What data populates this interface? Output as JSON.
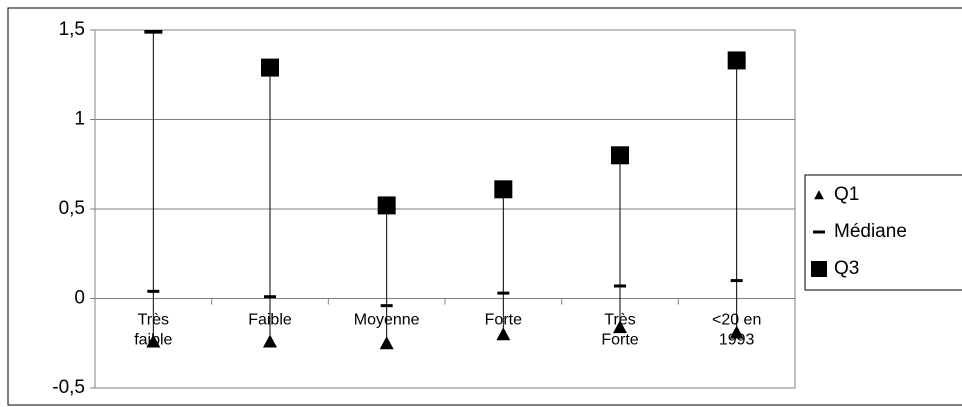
{
  "chart_data": {
    "type": "stock",
    "categories": [
      "Très\nfaible",
      "Faible",
      "Moyenne",
      "Forte",
      "Très\nForte",
      "<20 en\n1993"
    ],
    "series": [
      {
        "name": "Q1",
        "color": "#000000",
        "marker": "triangle",
        "values": [
          -0.24,
          -0.24,
          -0.25,
          -0.2,
          -0.16,
          -0.19
        ]
      },
      {
        "name": "Médiane",
        "color": "#000000",
        "marker": "dash",
        "values": [
          0.04,
          0.01,
          -0.04,
          0.03,
          0.07,
          0.1
        ]
      },
      {
        "name": "Q3",
        "color": "#000000",
        "marker": "square",
        "values": [
          1.53,
          1.29,
          0.52,
          0.61,
          0.8,
          1.33
        ]
      }
    ],
    "ylim": [
      -0.5,
      1.5
    ],
    "yticks": [
      {
        "value": -0.5,
        "label": "-0,5"
      },
      0,
      {
        "value": 0.5,
        "label": "0,5"
      },
      1,
      {
        "value": 1.5,
        "label": "1,5"
      }
    ],
    "grid": true,
    "legend": "right"
  }
}
